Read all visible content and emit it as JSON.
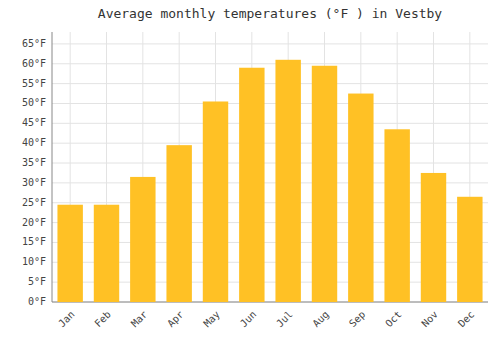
{
  "chart_data": {
    "type": "bar",
    "title": "Average monthly temperatures (°F ) in Vestby",
    "categories": [
      "Jan",
      "Feb",
      "Mar",
      "Apr",
      "May",
      "Jun",
      "Jul",
      "Aug",
      "Sep",
      "Oct",
      "Nov",
      "Dec"
    ],
    "values": [
      24.5,
      24.5,
      31.5,
      39.5,
      50.5,
      59.0,
      61.0,
      59.5,
      52.5,
      43.5,
      32.5,
      26.5
    ],
    "color": "#FFC125",
    "ylim": [
      0,
      68
    ],
    "yticks": [
      {
        "value": 0,
        "label": "0°F"
      },
      {
        "value": 5,
        "label": "5°F"
      },
      {
        "value": 10,
        "label": "10°F"
      },
      {
        "value": 15,
        "label": "15°F"
      },
      {
        "value": 20,
        "label": "20°F"
      },
      {
        "value": 25,
        "label": "25°F"
      },
      {
        "value": 30,
        "label": "30°F"
      },
      {
        "value": 35,
        "label": "35°F"
      },
      {
        "value": 40,
        "label": "40°F"
      },
      {
        "value": 45,
        "label": "45°F"
      },
      {
        "value": 50,
        "label": "50°F"
      },
      {
        "value": 55,
        "label": "55°F"
      },
      {
        "value": 60,
        "label": "60°F"
      },
      {
        "value": 65,
        "label": "65°F"
      }
    ],
    "grid": true
  }
}
